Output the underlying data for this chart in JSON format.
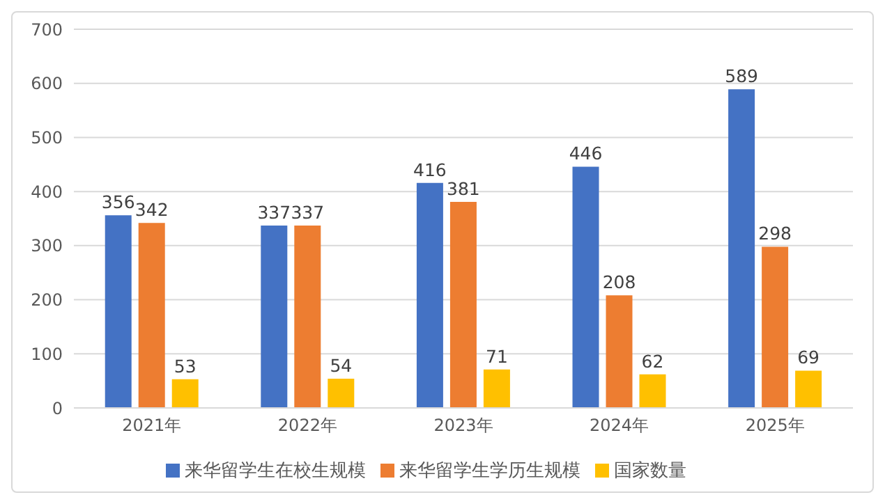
{
  "chart_data": {
    "type": "bar",
    "categories": [
      "2021年",
      "2022年",
      "2023年",
      "2024年",
      "2025年"
    ],
    "series": [
      {
        "name": "来华留学生在校生规模",
        "color": "#4472c4",
        "values": [
          356,
          337,
          416,
          446,
          589
        ]
      },
      {
        "name": "来华留学生学历生规模",
        "color": "#ed7d31",
        "values": [
          342,
          337,
          381,
          208,
          298
        ]
      },
      {
        "name": "国家数量",
        "color": "#ffc000",
        "values": [
          53,
          54,
          71,
          62,
          69
        ]
      }
    ],
    "ylim": [
      0,
      700
    ],
    "yticks": [
      0,
      100,
      200,
      300,
      400,
      500,
      600,
      700
    ],
    "grid": "y",
    "legend": "bottom",
    "data_labels": true
  }
}
